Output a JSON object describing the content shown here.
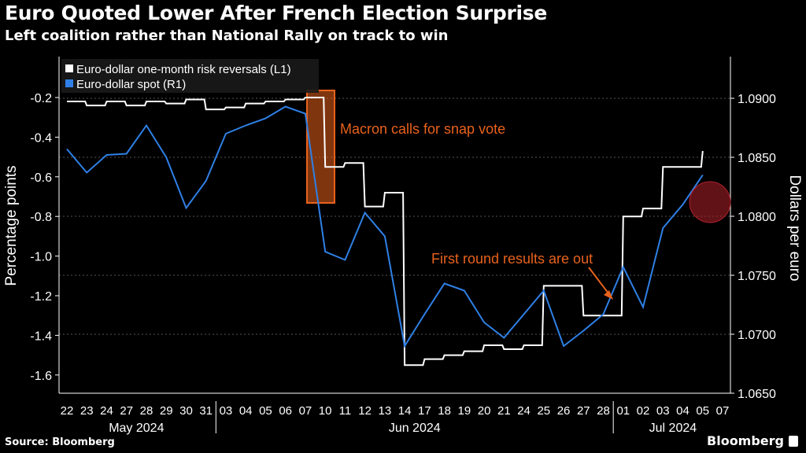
{
  "title": "Euro Quoted Lower After French Election Surprise",
  "subtitle": "Left coalition rather than National Rally on track to win",
  "source": "Source: Bloomberg",
  "brand": "Bloomberg",
  "chart_data": {
    "type": "line",
    "xlabel": "",
    "ylabel_left": "Percentage points",
    "ylabel_right": "Dollars per euro",
    "ylim_left": [
      -1.7,
      -0.1
    ],
    "ylim_right": [
      1.0643,
      1.0934
    ],
    "yticks_left": [
      "-0.2",
      "-0.4",
      "-0.6",
      "-0.8",
      "-1.0",
      "-1.2",
      "-1.4",
      "-1.6"
    ],
    "yticks_left_values": [
      -0.2,
      -0.4,
      -0.6,
      -0.8,
      -1.0,
      -1.2,
      -1.4,
      -1.6
    ],
    "yticks_right": [
      "1.0900",
      "1.0850",
      "1.0800",
      "1.0750",
      "1.0700",
      "1.0650"
    ],
    "yticks_right_values": [
      1.09,
      1.085,
      1.08,
      1.075,
      1.07,
      1.065
    ],
    "grid": true,
    "legend_position": "top-left",
    "x": [
      "22",
      "23",
      "24",
      "27",
      "28",
      "29",
      "30",
      "31",
      "03",
      "04",
      "05",
      "06",
      "07",
      "10",
      "11",
      "12",
      "13",
      "14",
      "17",
      "18",
      "19",
      "20",
      "21",
      "24",
      "25",
      "26",
      "27",
      "28",
      "01",
      "02",
      "03",
      "04",
      "05",
      "07"
    ],
    "months": [
      {
        "label": "May 2024",
        "start": 0,
        "end": 7
      },
      {
        "label": "Jun 2024",
        "start": 8,
        "end": 27
      },
      {
        "label": "Jul 2024",
        "start": 28,
        "end": 33
      }
    ],
    "series": [
      {
        "name": "Euro-dollar one-month risk reversals (L1)",
        "axis": "left",
        "color": "#ffffff",
        "values": [
          -0.22,
          -0.24,
          -0.22,
          -0.24,
          -0.22,
          -0.23,
          -0.21,
          -0.26,
          -0.25,
          -0.23,
          -0.22,
          -0.21,
          -0.2,
          -0.55,
          -0.53,
          -0.75,
          -0.68,
          -1.55,
          -1.52,
          -1.5,
          -1.48,
          -1.45,
          -1.47,
          -1.45,
          -1.15,
          -1.15,
          -1.3,
          -1.3,
          -0.8,
          -0.76,
          -0.55,
          -0.55,
          -0.47,
          null
        ]
      },
      {
        "name": "Euro-dollar spot (R1)",
        "axis": "right",
        "color": "#2f80e6",
        "values": [
          1.0857,
          1.0837,
          1.0852,
          1.0853,
          1.0877,
          1.085,
          1.0807,
          1.083,
          1.087,
          1.0877,
          1.0883,
          1.0893,
          1.0887,
          1.077,
          1.0763,
          1.0803,
          1.0783,
          1.069,
          1.0717,
          1.0743,
          1.0737,
          1.071,
          1.0697,
          1.0717,
          1.0737,
          1.069,
          1.0703,
          1.0717,
          1.0757,
          1.0723,
          1.079,
          1.081,
          1.0835,
          null
        ]
      }
    ],
    "annotations": [
      {
        "text": "Macron calls for snap vote",
        "type": "box",
        "color": "#e8621c"
      },
      {
        "text": "First round results are out",
        "type": "arrow",
        "color": "#e8621c"
      },
      {
        "type": "circle",
        "color": "#b0202a"
      }
    ]
  }
}
